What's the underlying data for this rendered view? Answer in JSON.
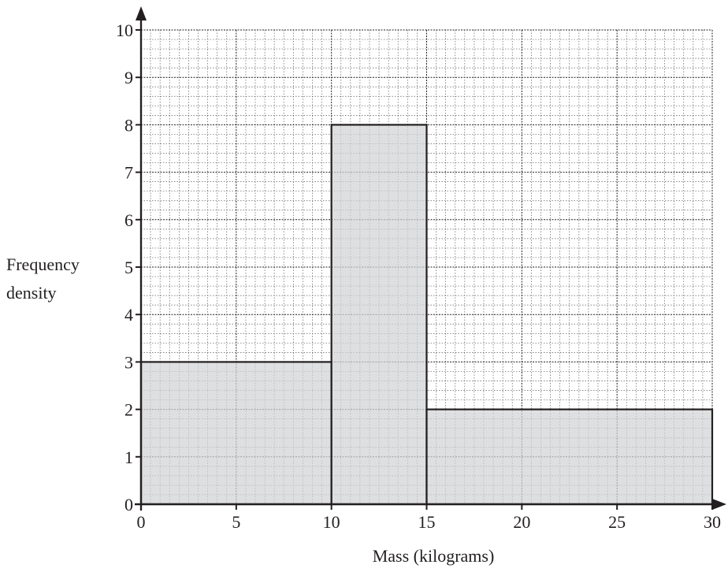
{
  "chart_data": {
    "type": "histogram",
    "title": "",
    "xlabel": "Mass (kilograms)",
    "ylabel_lines": [
      "Frequency",
      "density"
    ],
    "xlim": [
      0,
      30
    ],
    "ylim": [
      0,
      10
    ],
    "x_ticks": [
      0,
      5,
      10,
      15,
      20,
      25,
      30
    ],
    "y_ticks": [
      0,
      1,
      2,
      3,
      4,
      5,
      6,
      7,
      8,
      9,
      10
    ],
    "bins": [
      {
        "from": 0,
        "to": 10,
        "value": 3
      },
      {
        "from": 10,
        "to": 15,
        "value": 8
      },
      {
        "from": 15,
        "to": 30,
        "value": 2
      }
    ],
    "grid": true,
    "colors": {
      "bar_fill": "#d1d3d4",
      "bar_stroke": "#231f20",
      "axis": "#231f20",
      "grid_minor": "#5d5d5d",
      "grid_major": "#231f20"
    }
  }
}
